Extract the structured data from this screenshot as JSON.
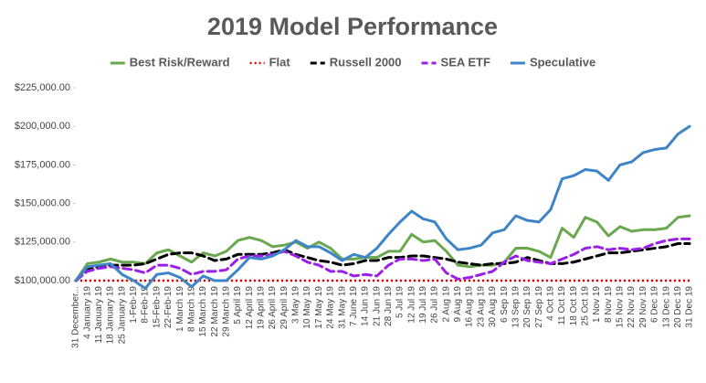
{
  "chart_data": {
    "type": "line",
    "title": "2019 Model Performance",
    "categories": [
      "31 December...",
      "4 January 19",
      "11 January 19",
      "18 January 19",
      "25 January 19",
      "1-Feb-19",
      "8-Feb-19",
      "15-Feb-19",
      "22-Feb-19",
      "1 March 19",
      "8 March 19",
      "15 March 19",
      "22 March 19",
      "29 March 19",
      "5 April 19",
      "12 April 19",
      "19 April 19",
      "26 April 19",
      "29 April 19",
      "3 May 19",
      "10 May 19",
      "17 May 19",
      "24 May 19",
      "31 May 19",
      "7 June 19",
      "14 Jun 19",
      "21 Jun 19",
      "28 Jun 19",
      "5 Jul 19",
      "12 Jul 19",
      "19 Jul 19",
      "26 Jul 19",
      "2 Aug 19",
      "9 Aug 19",
      "16 Aug 19",
      "23 Aug 19",
      "30 Aug 19",
      "6 Sep 19",
      "13 Sep 19",
      "20 Sep 19",
      "27 Sep 19",
      "4 Oct 19",
      "11 Oct 19",
      "18 Oct 19",
      "25 Oct 19",
      "1 Nov 19",
      "8 Nov 19",
      "15 Nov 19",
      "22 Nov 19",
      "29 Nov 19",
      "6 Dec 19",
      "13 Dec 19",
      "20 Dec 19",
      "31 Dec 19"
    ],
    "series": [
      {
        "name": "Best Risk/Reward",
        "color": "#6aa84f",
        "style": "solid",
        "values": [
          100000,
          111000,
          112000,
          114000,
          112000,
          112000,
          111000,
          118000,
          120000,
          116000,
          112000,
          118000,
          116000,
          119000,
          126000,
          128000,
          126000,
          122000,
          123000,
          125000,
          121000,
          125000,
          121000,
          114000,
          114000,
          115000,
          115000,
          119000,
          119000,
          130000,
          125000,
          126000,
          119000,
          110000,
          109000,
          110000,
          110000,
          112000,
          121000,
          121000,
          119000,
          115000,
          134000,
          128000,
          141000,
          138000,
          129000,
          135000,
          132000,
          133000,
          133000,
          134000,
          141000,
          142000
        ]
      },
      {
        "name": "Flat",
        "color": "#e00000",
        "style": "dotted",
        "values": [
          100000,
          100000,
          100000,
          100000,
          100000,
          100000,
          100000,
          100000,
          100000,
          100000,
          100000,
          100000,
          100000,
          100000,
          100000,
          100000,
          100000,
          100000,
          100000,
          100000,
          100000,
          100000,
          100000,
          100000,
          100000,
          100000,
          100000,
          100000,
          100000,
          100000,
          100000,
          100000,
          100000,
          100000,
          100000,
          100000,
          100000,
          100000,
          100000,
          100000,
          100000,
          100000,
          100000,
          100000,
          100000,
          100000,
          100000,
          100000,
          100000,
          100000,
          100000,
          100000,
          100000,
          100000
        ]
      },
      {
        "name": "Russell 2000",
        "color": "#000000",
        "style": "dashed",
        "values": [
          100000,
          107000,
          109000,
          110000,
          110000,
          110000,
          111000,
          114000,
          117000,
          118000,
          118000,
          116000,
          113000,
          114000,
          117000,
          117000,
          117000,
          118000,
          120000,
          117000,
          115000,
          113000,
          112000,
          110000,
          111000,
          113000,
          113000,
          115000,
          115000,
          116000,
          116000,
          115000,
          114000,
          112000,
          111000,
          110000,
          111000,
          111000,
          112000,
          115000,
          113000,
          111000,
          111000,
          112000,
          114000,
          116000,
          118000,
          118000,
          119000,
          120000,
          121000,
          122000,
          124000,
          124000
        ]
      },
      {
        "name": "SEA ETF",
        "color": "#9b1fe8",
        "style": "dashed",
        "values": [
          100000,
          106000,
          108000,
          109000,
          108000,
          107000,
          105000,
          110000,
          110000,
          108000,
          104000,
          106000,
          106000,
          107000,
          114000,
          116000,
          116000,
          117000,
          119000,
          116000,
          112000,
          110000,
          106000,
          106000,
          103000,
          104000,
          103000,
          110000,
          114000,
          114000,
          113000,
          114000,
          105000,
          101000,
          102000,
          104000,
          106000,
          112000,
          116000,
          113000,
          112000,
          111000,
          114000,
          117000,
          121000,
          122000,
          120000,
          121000,
          120000,
          121000,
          124000,
          126000,
          127000,
          127000
        ]
      },
      {
        "name": "Speculative",
        "color": "#3d85c6",
        "style": "solid",
        "values": [
          100000,
          109000,
          110000,
          111000,
          104000,
          100000,
          95000,
          104000,
          105000,
          102000,
          96000,
          103000,
          100000,
          100000,
          107000,
          115000,
          114000,
          116000,
          120000,
          126000,
          122000,
          122000,
          118000,
          113000,
          117000,
          115000,
          121000,
          130000,
          138000,
          145000,
          140000,
          138000,
          127000,
          120000,
          121000,
          123000,
          131000,
          133000,
          142000,
          139000,
          138000,
          146000,
          166000,
          168000,
          172000,
          171000,
          165000,
          175000,
          177000,
          183000,
          185000,
          186000,
          195000,
          200000
        ]
      }
    ],
    "ylim": [
      100000,
      225000
    ],
    "yticks": [
      {
        "value": 100000,
        "label": "$100,000.00"
      },
      {
        "value": 125000,
        "label": "$125,000.00"
      },
      {
        "value": 150000,
        "label": "$150,000.00"
      },
      {
        "value": 175000,
        "label": "$175,000.00"
      },
      {
        "value": 200000,
        "label": "$200,000.00"
      },
      {
        "value": 225000,
        "label": "$225,000.00"
      }
    ],
    "grid": false,
    "legend": "top"
  }
}
